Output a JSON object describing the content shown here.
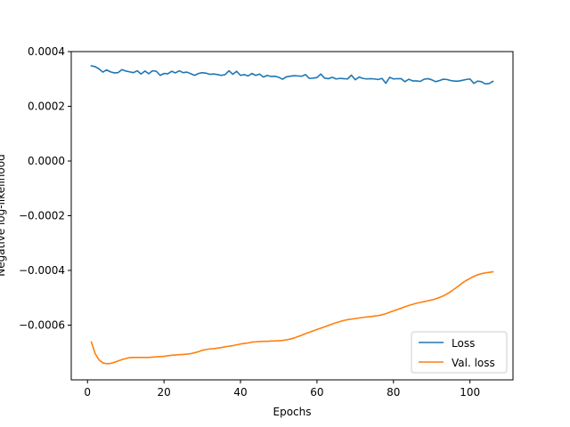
{
  "chart_data": {
    "type": "line",
    "title": "",
    "xlabel": "Epochs",
    "ylabel": "Negative log-likelihood",
    "xlim": [
      -4.25,
      111.25
    ],
    "ylim": [
      -0.0008,
      0.0004
    ],
    "xticks": [
      0,
      20,
      40,
      60,
      80,
      100
    ],
    "xtick_labels": [
      "0",
      "20",
      "40",
      "60",
      "80",
      "100"
    ],
    "yticks": [
      0.0004,
      0.0002,
      0.0,
      -0.0002,
      -0.0004,
      -0.0006
    ],
    "ytick_labels": [
      "0.0004",
      "0.0002",
      "0.0000",
      "−0.0002",
      "−0.0004",
      "−0.0006"
    ],
    "grid": false,
    "legend_position": "lower-right",
    "x": [
      1,
      2,
      3,
      4,
      5,
      6,
      7,
      8,
      9,
      10,
      11,
      12,
      13,
      14,
      15,
      16,
      17,
      18,
      19,
      20,
      21,
      22,
      23,
      24,
      25,
      26,
      27,
      28,
      29,
      30,
      31,
      32,
      33,
      34,
      35,
      36,
      37,
      38,
      39,
      40,
      41,
      42,
      43,
      44,
      45,
      46,
      47,
      48,
      49,
      50,
      51,
      52,
      53,
      54,
      55,
      56,
      57,
      58,
      59,
      60,
      61,
      62,
      63,
      64,
      65,
      66,
      67,
      68,
      69,
      70,
      71,
      72,
      73,
      74,
      75,
      76,
      77,
      78,
      79,
      80,
      81,
      82,
      83,
      84,
      85,
      86,
      87,
      88,
      89,
      90,
      91,
      92,
      93,
      94,
      95,
      96,
      97,
      98,
      99,
      100,
      101,
      102,
      103,
      104,
      105,
      106
    ],
    "series": [
      {
        "name": "Loss",
        "color": "#1f77b4",
        "values": [
          0.000348,
          0.000345,
          0.000337,
          0.000325,
          0.000333,
          0.000326,
          0.000322,
          0.000323,
          0.000334,
          0.000329,
          0.000326,
          0.000323,
          0.00033,
          0.000318,
          0.000329,
          0.000319,
          0.00033,
          0.000328,
          0.000313,
          0.00032,
          0.000319,
          0.000328,
          0.000322,
          0.00033,
          0.000323,
          0.000325,
          0.000319,
          0.000313,
          0.00032,
          0.000323,
          0.000321,
          0.000317,
          0.000318,
          0.000316,
          0.000313,
          0.000316,
          0.00033,
          0.000317,
          0.000328,
          0.000313,
          0.000316,
          0.000311,
          0.00032,
          0.000313,
          0.000318,
          0.000307,
          0.000313,
          0.000309,
          0.00031,
          0.000306,
          0.000299,
          0.000308,
          0.00031,
          0.000312,
          0.000311,
          0.00031,
          0.000316,
          0.000302,
          0.000303,
          0.000305,
          0.000318,
          0.000303,
          0.000301,
          0.000306,
          0.0003,
          0.000302,
          0.000301,
          0.0003,
          0.000314,
          0.000297,
          0.000307,
          0.000302,
          0.0003,
          0.000301,
          0.0003,
          0.000298,
          0.000302,
          0.000284,
          0.000306,
          0.0003,
          0.000301,
          0.000301,
          0.00029,
          0.000299,
          0.000293,
          0.000293,
          0.000291,
          0.000299,
          0.000301,
          0.000297,
          0.00029,
          0.000294,
          0.000299,
          0.000298,
          0.000294,
          0.000292,
          0.000292,
          0.000295,
          0.000298,
          0.0003,
          0.000284,
          0.000292,
          0.00029,
          0.000282,
          0.000283,
          0.000291
        ]
      },
      {
        "name": "Val. loss",
        "color": "#ff7f0e",
        "values": [
          -0.000662,
          -0.000704,
          -0.000727,
          -0.000738,
          -0.000741,
          -0.00074,
          -0.000736,
          -0.000731,
          -0.000726,
          -0.000722,
          -0.000719,
          -0.000718,
          -0.000718,
          -0.000718,
          -0.000718,
          -0.000718,
          -0.000717,
          -0.000716,
          -0.000715,
          -0.000714,
          -0.000712,
          -0.00071,
          -0.000709,
          -0.000708,
          -0.000707,
          -0.000706,
          -0.000704,
          -0.000701,
          -0.000697,
          -0.000692,
          -0.000689,
          -0.000687,
          -0.000686,
          -0.000684,
          -0.000682,
          -0.000679,
          -0.000677,
          -0.000675,
          -0.000672,
          -0.000669,
          -0.000667,
          -0.000665,
          -0.000662,
          -0.000661,
          -0.00066,
          -0.000659,
          -0.000659,
          -0.000658,
          -0.000658,
          -0.000657,
          -0.000656,
          -0.000654,
          -0.000651,
          -0.000647,
          -0.000642,
          -0.000637,
          -0.000631,
          -0.000626,
          -0.000621,
          -0.000616,
          -0.000611,
          -0.000606,
          -0.000601,
          -0.000596,
          -0.000591,
          -0.000587,
          -0.000583,
          -0.00058,
          -0.000578,
          -0.000576,
          -0.000574,
          -0.000572,
          -0.00057,
          -0.000569,
          -0.000567,
          -0.000565,
          -0.000562,
          -0.000558,
          -0.000553,
          -0.000548,
          -0.000543,
          -0.000538,
          -0.000533,
          -0.000528,
          -0.000524,
          -0.00052,
          -0.000517,
          -0.000514,
          -0.000511,
          -0.000508,
          -0.000504,
          -0.000499,
          -0.000493,
          -0.000486,
          -0.000477,
          -0.000467,
          -0.000457,
          -0.000446,
          -0.000437,
          -0.000429,
          -0.000422,
          -0.000416,
          -0.000412,
          -0.000409,
          -0.000407,
          -0.000405
        ]
      }
    ]
  }
}
